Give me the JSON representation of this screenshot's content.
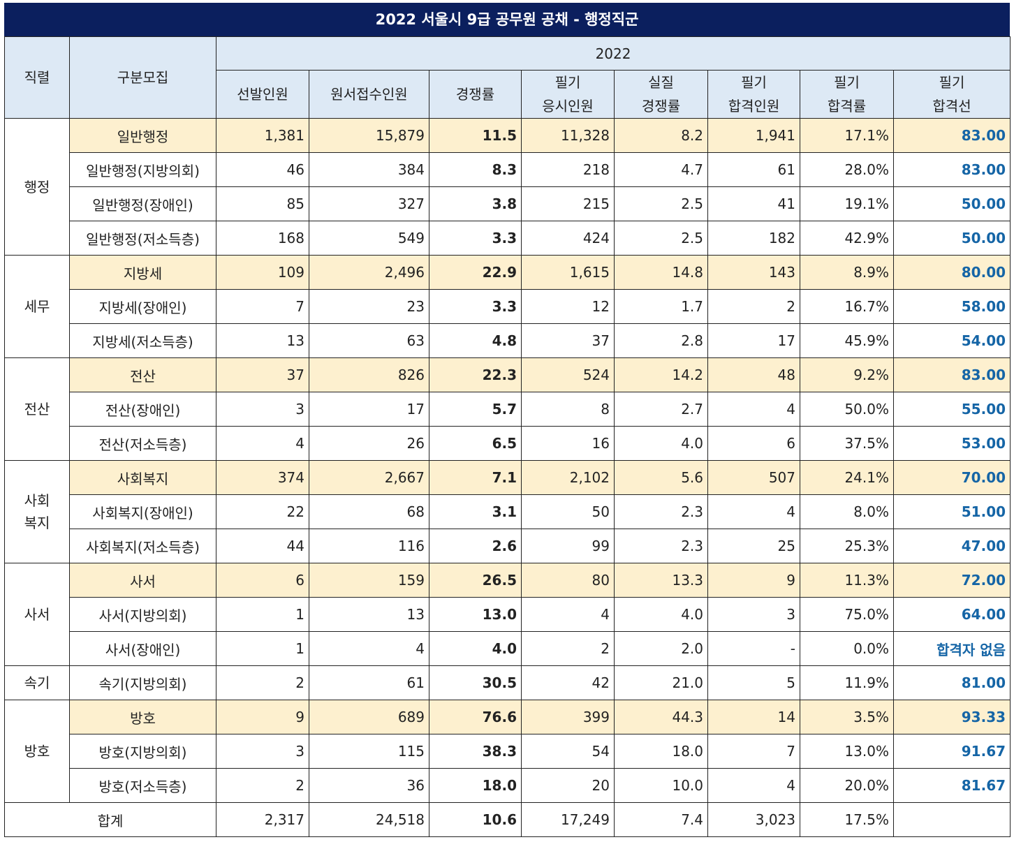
{
  "title": "2022 서울시 9급 공무원 공채 - 행정직군",
  "header": {
    "col_series": "직렬",
    "col_category": "구분모집",
    "year": "2022",
    "col_selected": "선발인원",
    "col_applicants": "원서접수인원",
    "col_competition": "경쟁률",
    "col_takers_1": "필기",
    "col_takers_2": "응시인원",
    "col_real_comp_1": "실질",
    "col_real_comp_2": "경쟁률",
    "col_passed_1": "필기",
    "col_passed_2": "합격인원",
    "col_pass_rate_1": "필기",
    "col_pass_rate_2": "합격률",
    "col_cutoff_1": "필기",
    "col_cutoff_2": "합격선"
  },
  "groups": [
    {
      "name": "행정",
      "rows": [
        {
          "category": "일반행정",
          "selected": "1,381",
          "applicants": "15,879",
          "competition": "11.5",
          "takers": "11,328",
          "real_competition": "8.2",
          "passed": "1,941",
          "pass_rate": "17.1%",
          "cutoff": "83.00",
          "highlight": true
        },
        {
          "category": "일반행정(지방의회)",
          "selected": "46",
          "applicants": "384",
          "competition": "8.3",
          "takers": "218",
          "real_competition": "4.7",
          "passed": "61",
          "pass_rate": "28.0%",
          "cutoff": "83.00",
          "highlight": false
        },
        {
          "category": "일반행정(장애인)",
          "selected": "85",
          "applicants": "327",
          "competition": "3.8",
          "takers": "215",
          "real_competition": "2.5",
          "passed": "41",
          "pass_rate": "19.1%",
          "cutoff": "50.00",
          "highlight": false
        },
        {
          "category": "일반행정(저소득층)",
          "selected": "168",
          "applicants": "549",
          "competition": "3.3",
          "takers": "424",
          "real_competition": "2.5",
          "passed": "182",
          "pass_rate": "42.9%",
          "cutoff": "50.00",
          "highlight": false
        }
      ]
    },
    {
      "name": "세무",
      "rows": [
        {
          "category": "지방세",
          "selected": "109",
          "applicants": "2,496",
          "competition": "22.9",
          "takers": "1,615",
          "real_competition": "14.8",
          "passed": "143",
          "pass_rate": "8.9%",
          "cutoff": "80.00",
          "highlight": true
        },
        {
          "category": "지방세(장애인)",
          "selected": "7",
          "applicants": "23",
          "competition": "3.3",
          "takers": "12",
          "real_competition": "1.7",
          "passed": "2",
          "pass_rate": "16.7%",
          "cutoff": "58.00",
          "highlight": false
        },
        {
          "category": "지방세(저소득층)",
          "selected": "13",
          "applicants": "63",
          "competition": "4.8",
          "takers": "37",
          "real_competition": "2.8",
          "passed": "17",
          "pass_rate": "45.9%",
          "cutoff": "54.00",
          "highlight": false
        }
      ]
    },
    {
      "name": "전산",
      "rows": [
        {
          "category": "전산",
          "selected": "37",
          "applicants": "826",
          "competition": "22.3",
          "takers": "524",
          "real_competition": "14.2",
          "passed": "48",
          "pass_rate": "9.2%",
          "cutoff": "83.00",
          "highlight": true
        },
        {
          "category": "전산(장애인)",
          "selected": "3",
          "applicants": "17",
          "competition": "5.7",
          "takers": "8",
          "real_competition": "2.7",
          "passed": "4",
          "pass_rate": "50.0%",
          "cutoff": "55.00",
          "highlight": false
        },
        {
          "category": "전산(저소득층)",
          "selected": "4",
          "applicants": "26",
          "competition": "6.5",
          "takers": "16",
          "real_competition": "4.0",
          "passed": "6",
          "pass_rate": "37.5%",
          "cutoff": "53.00",
          "highlight": false
        }
      ]
    },
    {
      "name": "사회\n복지",
      "rows": [
        {
          "category": "사회복지",
          "selected": "374",
          "applicants": "2,667",
          "competition": "7.1",
          "takers": "2,102",
          "real_competition": "5.6",
          "passed": "507",
          "pass_rate": "24.1%",
          "cutoff": "70.00",
          "highlight": true
        },
        {
          "category": "사회복지(장애인)",
          "selected": "22",
          "applicants": "68",
          "competition": "3.1",
          "takers": "50",
          "real_competition": "2.3",
          "passed": "4",
          "pass_rate": "8.0%",
          "cutoff": "51.00",
          "highlight": false
        },
        {
          "category": "사회복지(저소득층)",
          "selected": "44",
          "applicants": "116",
          "competition": "2.6",
          "takers": "99",
          "real_competition": "2.3",
          "passed": "25",
          "pass_rate": "25.3%",
          "cutoff": "47.00",
          "highlight": false
        }
      ]
    },
    {
      "name": "사서",
      "rows": [
        {
          "category": "사서",
          "selected": "6",
          "applicants": "159",
          "competition": "26.5",
          "takers": "80",
          "real_competition": "13.3",
          "passed": "9",
          "pass_rate": "11.3%",
          "cutoff": "72.00",
          "highlight": true
        },
        {
          "category": "사서(지방의회)",
          "selected": "1",
          "applicants": "13",
          "competition": "13.0",
          "takers": "4",
          "real_competition": "4.0",
          "passed": "3",
          "pass_rate": "75.0%",
          "cutoff": "64.00",
          "highlight": false
        },
        {
          "category": "사서(장애인)",
          "selected": "1",
          "applicants": "4",
          "competition": "4.0",
          "takers": "2",
          "real_competition": "2.0",
          "passed": "-",
          "pass_rate": "0.0%",
          "cutoff": "합격자 없음",
          "highlight": false
        }
      ]
    },
    {
      "name": "속기",
      "rows": [
        {
          "category": "속기(지방의회)",
          "selected": "2",
          "applicants": "61",
          "competition": "30.5",
          "takers": "42",
          "real_competition": "21.0",
          "passed": "5",
          "pass_rate": "11.9%",
          "cutoff": "81.00",
          "highlight": false
        }
      ]
    },
    {
      "name": "방호",
      "rows": [
        {
          "category": "방호",
          "selected": "9",
          "applicants": "689",
          "competition": "76.6",
          "takers": "399",
          "real_competition": "44.3",
          "passed": "14",
          "pass_rate": "3.5%",
          "cutoff": "93.33",
          "highlight": true
        },
        {
          "category": "방호(지방의회)",
          "selected": "3",
          "applicants": "115",
          "competition": "38.3",
          "takers": "54",
          "real_competition": "18.0",
          "passed": "7",
          "pass_rate": "13.0%",
          "cutoff": "91.67",
          "highlight": false
        },
        {
          "category": "방호(저소득층)",
          "selected": "2",
          "applicants": "36",
          "competition": "18.0",
          "takers": "20",
          "real_competition": "10.0",
          "passed": "4",
          "pass_rate": "20.0%",
          "cutoff": "81.67",
          "highlight": false
        }
      ]
    }
  ],
  "total": {
    "label": "합계",
    "selected": "2,317",
    "applicants": "24,518",
    "competition": "10.6",
    "takers": "17,249",
    "real_competition": "7.4",
    "passed": "3,023",
    "pass_rate": "17.5%",
    "cutoff": ""
  },
  "colors": {
    "title_bg": "#0b1f5e",
    "header_bg": "#dde9f5",
    "highlight_bg": "#fdf0cf",
    "cutoff_text": "#1565a6"
  }
}
